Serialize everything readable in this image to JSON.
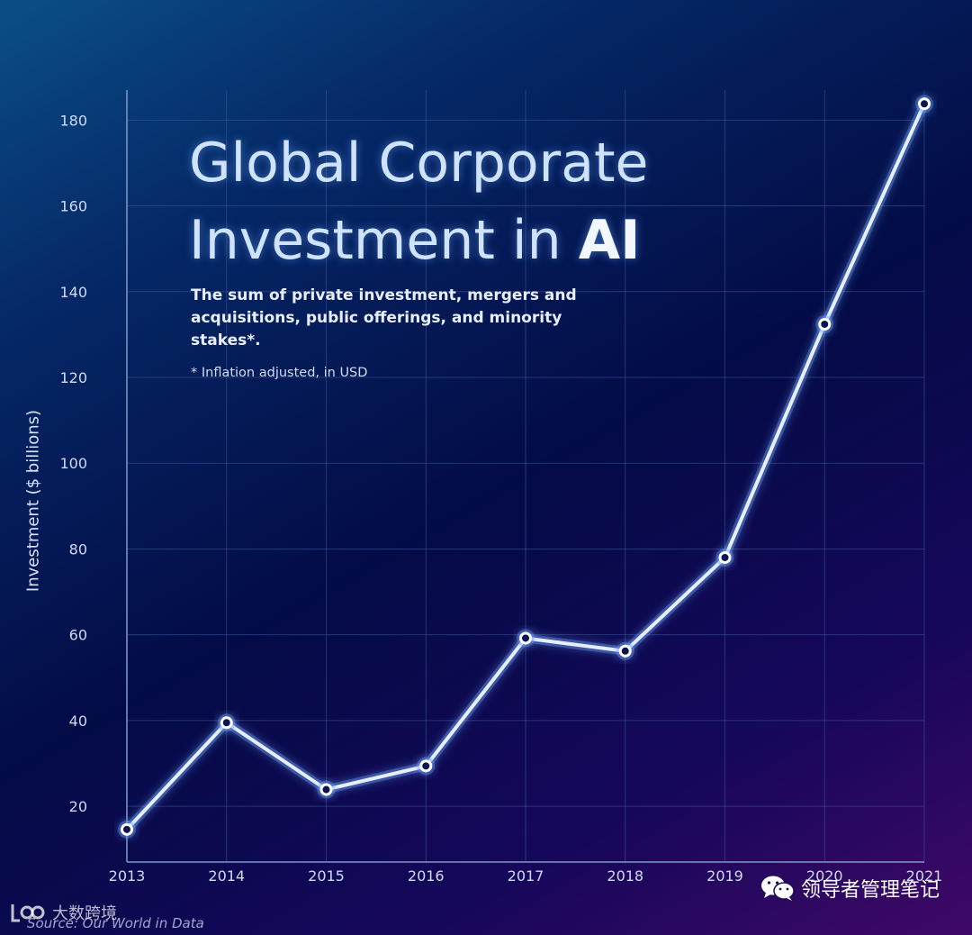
{
  "chart_data": {
    "type": "line",
    "title": [
      "Global Corporate",
      "Investment in",
      "AI"
    ],
    "subtitle": "The sum of private investment, mergers and acquisitions, public offerings, and minority stakes*.",
    "footnote": "* Inflation adjusted, in USD",
    "ylabel": "Investment ($ billions)",
    "xlabel": "",
    "x": [
      "2013",
      "2014",
      "2015",
      "2016",
      "2017",
      "2018",
      "2019",
      "2020",
      "2021"
    ],
    "y": [
      14.6,
      39.5,
      23.9,
      29.4,
      59.2,
      56.2,
      78.0,
      132.4,
      183.8
    ],
    "ylim": [
      7,
      187
    ],
    "yticks": [
      20,
      40,
      60,
      80,
      100,
      120,
      140,
      160,
      180
    ],
    "grid": true,
    "legend": "none",
    "colors": {
      "line": "#e6efff",
      "glow": "#6fa6ff",
      "grid": "#3c5a9a",
      "tick": "#cfdaf5"
    }
  },
  "source": "Source: Our World in Data",
  "watermark": {
    "text": "领导者管理笔记",
    "icon": "wechat-icon"
  },
  "logo": {
    "text": "大数跨境",
    "icon": "logo-mark-icon"
  }
}
